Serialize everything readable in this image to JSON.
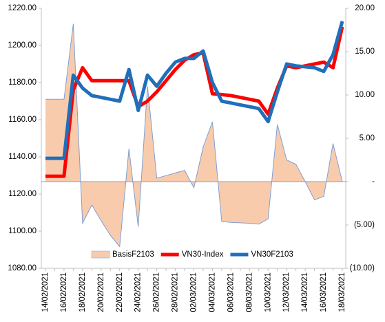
{
  "chart_data": {
    "type": "line",
    "categories": [
      "14/02/2021",
      null,
      "16/02/2021",
      null,
      "18/02/2021",
      null,
      "20/02/2021",
      null,
      "22/02/2021",
      null,
      "24/02/2021",
      null,
      "26/02/2021",
      null,
      "28/02/2021",
      null,
      "02/03/2021",
      null,
      "04/03/2021",
      null,
      "06/03/2021",
      null,
      "08/03/2021",
      null,
      "10/03/2021",
      null,
      "12/03/2021",
      null,
      "14/03/2021",
      null,
      "16/03/2021",
      null,
      "18/03/2021"
    ],
    "series": [
      {
        "name": "BasisF2103",
        "type": "area",
        "axis": "y2",
        "color": "#f8cbad",
        "line_color": "#7f9fd4",
        "values": [
          9.5,
          9.5,
          9.5,
          18.2,
          -4.8,
          -2.7,
          -4.5,
          -6.2,
          -7.5,
          3.8,
          -5.2,
          11.0,
          0.4,
          0.7,
          1.0,
          1.3,
          -0.7,
          4.0,
          6.9,
          -4.6,
          -4.7,
          -4.75,
          -4.8,
          -4.9,
          -4.3,
          6.6,
          2.5,
          2.0,
          0.0,
          -2.1,
          -1.7,
          4.4,
          0.0
        ]
      },
      {
        "name": "VN30-Index",
        "type": "line",
        "color": "#ff0000",
        "values": [
          1129.6,
          1129.6,
          1129.6,
          1176,
          1188,
          1181,
          1181,
          1181,
          1181,
          1181,
          1167,
          1170,
          1175,
          1181,
          1187,
          1192,
          1195,
          1196,
          1174,
          1173.5,
          1173,
          1172,
          1171,
          1170,
          1163,
          1177,
          1189,
          1188,
          1189,
          1190,
          1191,
          1188,
          1210
        ]
      },
      {
        "name": "VN30F2103",
        "type": "line",
        "color": "#1f6fba",
        "values": [
          1139.2,
          1139.2,
          1139.2,
          1184,
          1177,
          1173,
          1172,
          1171,
          1170,
          1187,
          1165,
          1184,
          1178,
          1185,
          1191,
          1193,
          1193,
          1197,
          1180,
          1170,
          1169,
          1168,
          1167,
          1166,
          1159,
          1175,
          1190,
          1189,
          1188.5,
          1188,
          1186,
          1195,
          1213
        ]
      }
    ],
    "ylim": [
      1080,
      1220
    ],
    "yticks": [
      {
        "value": 1080,
        "label": "1080.00"
      },
      {
        "value": 1100,
        "label": "1100.00"
      },
      {
        "value": 1120,
        "label": "1120.00"
      },
      {
        "value": 1140,
        "label": "1140.00"
      },
      {
        "value": 1160,
        "label": "1160.00"
      },
      {
        "value": 1180,
        "label": "1180.00"
      },
      {
        "value": 1200,
        "label": "1200.00"
      },
      {
        "value": 1220,
        "label": "1220.00"
      }
    ],
    "y2lim": [
      -10,
      20
    ],
    "y2ticks": [
      {
        "value": -10,
        "label": "(10.00)"
      },
      {
        "value": -5,
        "label": "(5.00)"
      },
      {
        "value": 0,
        "label": "-"
      },
      {
        "value": 5,
        "label": "5.00"
      },
      {
        "value": 10,
        "label": "10.00"
      },
      {
        "value": 15,
        "label": "15.00"
      },
      {
        "value": 20,
        "label": "20.00"
      }
    ],
    "grid": false,
    "legend": "bottom"
  }
}
